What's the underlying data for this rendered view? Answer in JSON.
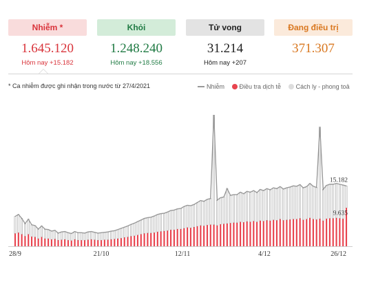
{
  "cards": [
    {
      "label": "Nhiễm *",
      "value": "1.645.120",
      "sub": "Hôm nay +15.182"
    },
    {
      "label": "Khỏi",
      "value": "1.248.240",
      "sub": "Hôm nay +18.556"
    },
    {
      "label": "Tử vong",
      "value": "31.214",
      "sub": "Hôm nay +207"
    },
    {
      "label": "Đang điều trị",
      "value": "371.307",
      "sub": ""
    }
  ],
  "note": "* Ca nhiễm được ghi nhận trong nước từ 27/4/2021",
  "legend": {
    "line": "Nhiễm",
    "red": "Điều tra dịch tễ",
    "gray": "Cách ly - phong toả"
  },
  "colors": {
    "line": "#999999",
    "red": "#e8444f",
    "gray": "#dddddd"
  },
  "chart_data": {
    "type": "bar",
    "x_labels": [
      "28/9",
      "21/10",
      "12/11",
      "4/12",
      "26/12"
    ],
    "series": [
      {
        "name": "Nhiễm",
        "values": [
          7500,
          8000,
          7000,
          5700,
          6800,
          5400,
          5200,
          4300,
          5100,
          4300,
          4200,
          3800,
          4000,
          3300,
          3600,
          3700,
          3400,
          3200,
          3700,
          3400,
          3400,
          3300,
          3600,
          3700,
          3500,
          3300,
          3400,
          3500,
          3600,
          3800,
          3900,
          4200,
          4500,
          4800,
          5100,
          5500,
          5800,
          6200,
          6600,
          7000,
          7200,
          7300,
          7600,
          8000,
          8200,
          8300,
          8600,
          9000,
          9100,
          9400,
          9500,
          10000,
          10300,
          10200,
          10500,
          11000,
          11500,
          11300,
          11800,
          12000,
          33000,
          11600,
          12200,
          12400,
          14500,
          12800,
          13000,
          13000,
          13600,
          13200,
          13800,
          13600,
          14000,
          13500,
          14300,
          14000,
          14500,
          14200,
          14700,
          14500,
          15000,
          14400,
          14700,
          14900,
          15200,
          15100,
          15500,
          14700,
          15000,
          15800,
          15100,
          14800,
          30000,
          14300,
          15300,
          15600,
          15600,
          15800,
          15600,
          15400,
          15182
        ]
      },
      {
        "name": "Điều tra dịch tễ",
        "values": [
          3200,
          3400,
          3000,
          2500,
          3000,
          2400,
          2300,
          1900,
          2300,
          1900,
          1900,
          1700,
          1800,
          1500,
          1600,
          1700,
          1500,
          1400,
          1700,
          1500,
          1500,
          1500,
          1600,
          1700,
          1600,
          1500,
          1500,
          1600,
          1600,
          1700,
          1800,
          1900,
          2000,
          2200,
          2300,
          2500,
          2600,
          2800,
          3000,
          3200,
          3300,
          3300,
          3400,
          3600,
          3700,
          3800,
          3900,
          4100,
          4100,
          4300,
          4300,
          4500,
          4700,
          4600,
          4800,
          5000,
          5200,
          5100,
          5300,
          5400,
          5400,
          5200,
          5500,
          5600,
          5700,
          5800,
          5900,
          5900,
          6100,
          6000,
          6200,
          6100,
          6300,
          6100,
          6400,
          6300,
          6500,
          6400,
          6600,
          6500,
          6800,
          6500,
          6600,
          6700,
          6800,
          6800,
          7000,
          6600,
          6800,
          7100,
          6800,
          6700,
          6900,
          6400,
          6900,
          7000,
          7000,
          7100,
          7000,
          6900,
          9635
        ]
      },
      {
        "name": "Cách ly - phong toả",
        "values": [
          4300,
          4600,
          4000,
          3200,
          3800,
          3000,
          2900,
          2400,
          2800,
          2400,
          2300,
          2100,
          2200,
          1800,
          2000,
          2000,
          1900,
          1800,
          2000,
          1900,
          1900,
          1800,
          2000,
          2000,
          1900,
          1800,
          1900,
          1900,
          2000,
          2100,
          2100,
          2300,
          2500,
          2600,
          2800,
          3000,
          3200,
          3400,
          3600,
          3800,
          3900,
          4000,
          4200,
          4400,
          4500,
          4500,
          4700,
          4900,
          5000,
          5100,
          5200,
          5500,
          5600,
          5600,
          5700,
          6000,
          6300,
          6200,
          6500,
          6600,
          27600,
          6400,
          6700,
          6800,
          8800,
          7000,
          7100,
          7100,
          7500,
          7200,
          7600,
          7500,
          7700,
          7400,
          7900,
          7700,
          8000,
          7800,
          8100,
          8000,
          8200,
          7900,
          8100,
          8200,
          8400,
          8300,
          8500,
          8100,
          8200,
          8700,
          8300,
          8100,
          23100,
          7900,
          8400,
          8600,
          8600,
          8700,
          8600,
          8500,
          5547
        ]
      }
    ],
    "annotations": [
      "15.182",
      "9.635"
    ],
    "ylim": [
      0,
      36000
    ]
  }
}
